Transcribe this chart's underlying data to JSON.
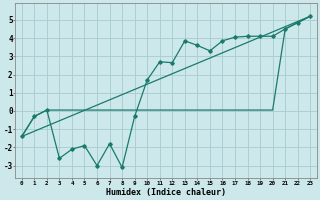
{
  "title": "",
  "xlabel": "Humidex (Indice chaleur)",
  "ylabel": "",
  "background_color": "#cde8ea",
  "grid_color": "#aacfd2",
  "line_color": "#1a7a6e",
  "xlim": [
    -0.5,
    23.5
  ],
  "ylim": [
    -3.7,
    5.9
  ],
  "xticks": [
    0,
    1,
    2,
    3,
    4,
    5,
    6,
    7,
    8,
    9,
    10,
    11,
    12,
    13,
    14,
    15,
    16,
    17,
    18,
    19,
    20,
    21,
    22,
    23
  ],
  "yticks": [
    -3,
    -2,
    -1,
    0,
    1,
    2,
    3,
    4,
    5
  ],
  "line1_x": [
    0,
    1,
    2,
    3,
    4,
    5,
    6,
    7,
    8,
    9,
    10,
    11,
    12,
    13,
    14,
    15,
    16,
    17,
    18,
    19,
    20,
    21,
    22,
    23
  ],
  "line1_y": [
    -1.4,
    -0.3,
    0.05,
    0.05,
    0.05,
    0.05,
    0.05,
    0.05,
    0.05,
    0.05,
    0.05,
    0.05,
    0.05,
    0.05,
    0.05,
    0.05,
    0.05,
    0.05,
    0.05,
    0.05,
    0.05,
    4.5,
    4.85,
    5.2
  ],
  "line2_x": [
    0,
    1,
    2,
    3,
    4,
    5,
    6,
    7,
    8,
    9,
    10,
    11,
    12,
    13,
    14,
    15,
    16,
    17,
    18,
    19,
    20,
    21,
    22,
    23
  ],
  "line2_y": [
    -1.4,
    -0.3,
    0.05,
    -2.6,
    -2.1,
    -1.9,
    -3.0,
    -1.8,
    -3.1,
    -0.3,
    1.7,
    2.7,
    2.65,
    3.85,
    3.6,
    3.3,
    3.85,
    4.05,
    4.1,
    4.1,
    4.1,
    4.5,
    4.85,
    5.2
  ],
  "line3_x": [
    0,
    23
  ],
  "line3_y": [
    -1.4,
    5.2
  ]
}
